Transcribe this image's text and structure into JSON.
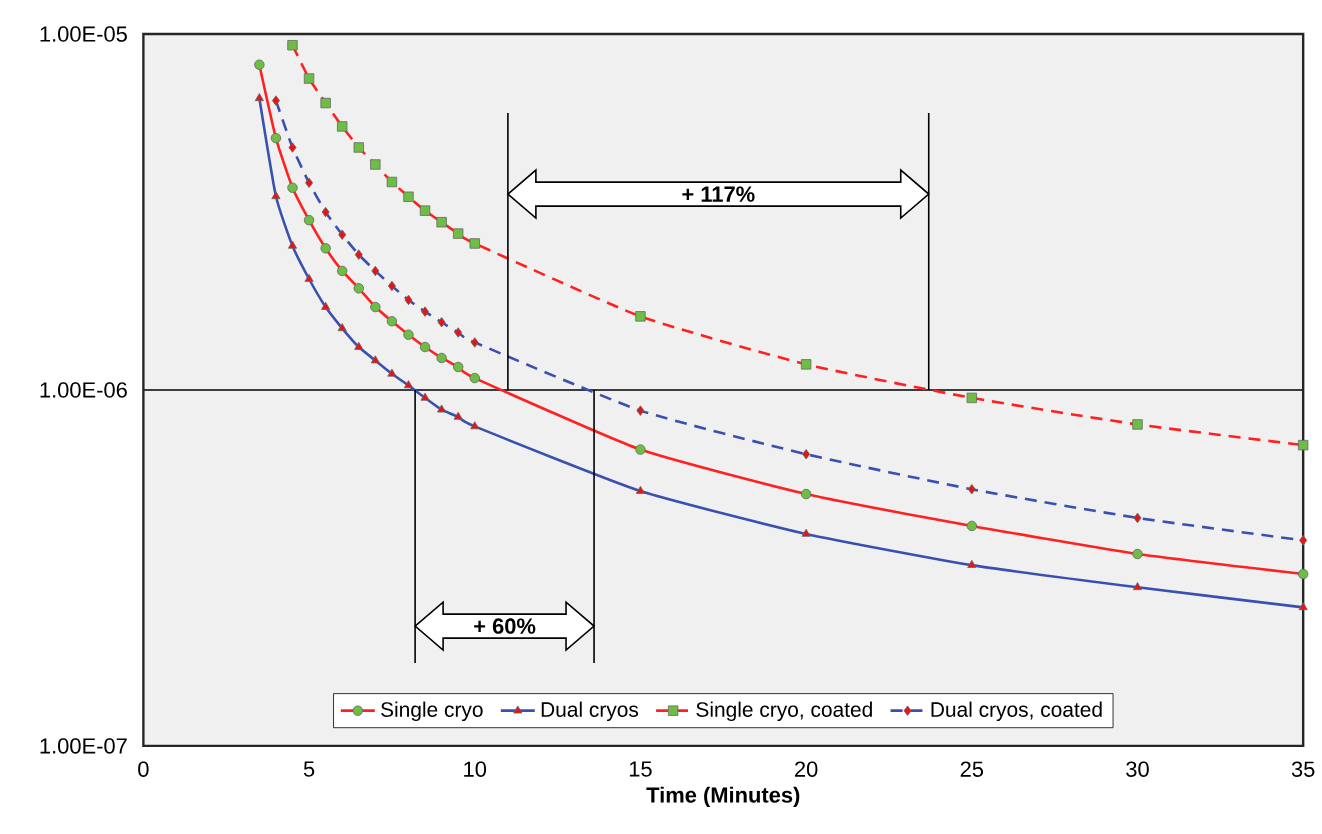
{
  "chart_data": {
    "type": "line",
    "xlabel": "**Time (Minutes)**",
    "xlim": [
      0,
      35
    ],
    "xticks": [
      0,
      5,
      10,
      15,
      20,
      25,
      30,
      35
    ],
    "ylim": [
      1e-07,
      1e-05
    ],
    "yticks": [
      {
        "value": 1e-07,
        "label": "1.00E-07"
      },
      {
        "value": 1e-06,
        "label": "1.00E-06"
      },
      {
        "value": 1e-05,
        "label": "1.00E-05"
      }
    ],
    "log": "y",
    "grid": "y",
    "legend": "bottom",
    "series": [
      {
        "name": "Single cryo",
        "color": "#ff2020",
        "marker": "circle",
        "line_style": "solid",
        "x": [
          3.5,
          4,
          4.5,
          5,
          5.5,
          6,
          6.5,
          7,
          7.5,
          8,
          8.5,
          9,
          9.5,
          10,
          15,
          20,
          25,
          30,
          35
        ],
        "values": [
          8.2e-06,
          5.1e-06,
          3.7e-06,
          3e-06,
          2.5e-06,
          2.16e-06,
          1.93e-06,
          1.71e-06,
          1.56e-06,
          1.43e-06,
          1.32e-06,
          1.23e-06,
          1.16e-06,
          1.08e-06,
          6.8e-07,
          5.1e-07,
          4.15e-07,
          3.46e-07,
          3.04e-07
        ]
      },
      {
        "name": "Dual cryos",
        "color": "#3a50b0",
        "marker": "triangle",
        "line_style": "solid",
        "x": [
          3.5,
          4,
          4.5,
          5,
          5.5,
          6,
          6.5,
          7,
          7.5,
          8,
          8.5,
          9,
          9.5,
          10,
          15,
          20,
          25,
          30,
          35
        ],
        "values": [
          6.6e-06,
          3.5e-06,
          2.54e-06,
          2.05e-06,
          1.71e-06,
          1.49e-06,
          1.32e-06,
          1.21e-06,
          1.11e-06,
          1.03e-06,
          9.5e-07,
          8.8e-07,
          8.4e-07,
          7.9e-07,
          5.2e-07,
          3.94e-07,
          3.22e-07,
          2.79e-07,
          2.45e-07
        ]
      },
      {
        "name": "Single cryo, coated",
        "color": "#ff2020",
        "marker": "square",
        "line_style": "dashed",
        "x": [
          4.5,
          5,
          5.5,
          6,
          6.5,
          7,
          7.5,
          8,
          8.5,
          9,
          9.5,
          10,
          15,
          20,
          25,
          30,
          35
        ],
        "values": [
          9.3e-06,
          7.5e-06,
          6.4e-06,
          5.5e-06,
          4.8e-06,
          4.3e-06,
          3.84e-06,
          3.49e-06,
          3.19e-06,
          2.96e-06,
          2.75e-06,
          2.58e-06,
          1.61e-06,
          1.18e-06,
          9.5e-07,
          8e-07,
          7e-07
        ]
      },
      {
        "name": "Dual cryos, coated",
        "color": "#3a50b0",
        "marker": "diamond",
        "line_style": "dashed",
        "x": [
          4,
          4.5,
          5,
          5.5,
          6,
          6.5,
          7,
          7.5,
          8,
          8.5,
          9,
          9.5,
          10,
          15,
          20,
          25,
          30,
          35
        ],
        "values": [
          6.5e-06,
          4.8e-06,
          3.82e-06,
          3.16e-06,
          2.73e-06,
          2.4e-06,
          2.16e-06,
          1.96e-06,
          1.79e-06,
          1.66e-06,
          1.55e-06,
          1.45e-06,
          1.36e-06,
          8.75e-07,
          6.6e-07,
          5.26e-07,
          4.37e-07,
          3.78e-07
        ]
      }
    ],
    "annotations": [
      "+ 117%",
      "+ 60%"
    ]
  }
}
